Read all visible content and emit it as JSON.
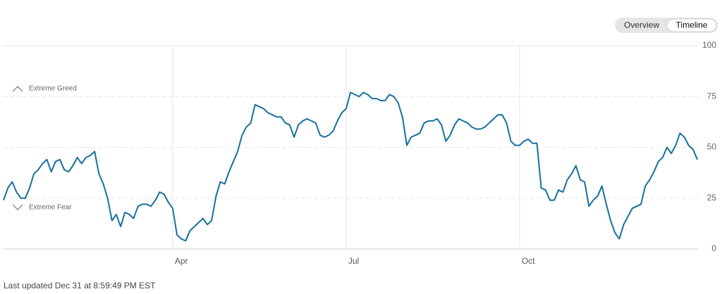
{
  "chart_data": {
    "type": "line",
    "annotations": [
      "Extreme Greed",
      "Extreme Fear"
    ],
    "categories": [
      null,
      null,
      null,
      null,
      null,
      null,
      null,
      null,
      null,
      null,
      null,
      null,
      null,
      null,
      null,
      null,
      null,
      null,
      null,
      null,
      null,
      null,
      null,
      null,
      null,
      null,
      null,
      null,
      null,
      null,
      null,
      null,
      null,
      null,
      null,
      null,
      null,
      null,
      null,
      "Apr",
      null,
      null,
      null,
      null,
      null,
      null,
      null,
      null,
      null,
      null,
      null,
      null,
      null,
      null,
      null,
      null,
      null,
      null,
      null,
      null,
      null,
      null,
      null,
      null,
      null,
      null,
      null,
      null,
      null,
      null,
      null,
      null,
      null,
      null,
      null,
      null,
      null,
      null,
      null,
      "Jul",
      null,
      null,
      null,
      null,
      null,
      null,
      null,
      null,
      null,
      null,
      null,
      null,
      null,
      null,
      null,
      null,
      null,
      null,
      null,
      null,
      null,
      null,
      null,
      null,
      null,
      null,
      null,
      null,
      null,
      null,
      null,
      null,
      null,
      null,
      null,
      null,
      null,
      null,
      null,
      "Oct",
      null,
      null,
      null,
      null,
      null,
      null,
      null,
      null,
      null,
      null,
      null,
      null,
      null,
      null,
      null,
      null,
      null,
      null,
      null,
      null,
      null,
      null,
      null,
      null,
      null,
      null,
      null,
      null,
      null,
      null,
      null,
      null,
      null,
      null,
      null,
      null,
      null,
      null,
      null,
      null,
      null
    ],
    "series": [
      {
        "color": "#16709c",
        "values": [
          24,
          30,
          33,
          28,
          25,
          25,
          30,
          37,
          39,
          42,
          44,
          38,
          43,
          44,
          39,
          38,
          41,
          45,
          42,
          45,
          46,
          48,
          37,
          32,
          25,
          14,
          17,
          11,
          18,
          17,
          15,
          21,
          22,
          22,
          21,
          24,
          28,
          27,
          23,
          20,
          7,
          5,
          4,
          9,
          11,
          13,
          15,
          12,
          14,
          26,
          33,
          32,
          38,
          43,
          48,
          56,
          60,
          62,
          71,
          70,
          69,
          67,
          66,
          65,
          65,
          62,
          61,
          55,
          61,
          63,
          64,
          63,
          62,
          56,
          55,
          56,
          58,
          63,
          67,
          69,
          77,
          76,
          75,
          77,
          76,
          74,
          74,
          73,
          73,
          76,
          75,
          72,
          65,
          51,
          55,
          56,
          57,
          62,
          63,
          63,
          64,
          61,
          53,
          56,
          61,
          64,
          63,
          62,
          60,
          59,
          59,
          60,
          62,
          64,
          66,
          66,
          62,
          53,
          51,
          51,
          53,
          54,
          52,
          52,
          30,
          29,
          24,
          24,
          29,
          28,
          34,
          37,
          41,
          34,
          33,
          21,
          24,
          26,
          31,
          22,
          14,
          8,
          5,
          12,
          16,
          20,
          21,
          22,
          31,
          34,
          38,
          43,
          45,
          50,
          47,
          51,
          57,
          55,
          51,
          49,
          44
        ]
      }
    ],
    "ylim": [
      0,
      100
    ],
    "yticks": [
      0,
      25,
      50,
      75,
      100
    ],
    "grid": true
  },
  "controls": {
    "tabs": [
      "Overview",
      "Timeline"
    ],
    "selected": "Timeline"
  },
  "footer": "Last updated Dec 31 at 8:59:49 PM EST"
}
